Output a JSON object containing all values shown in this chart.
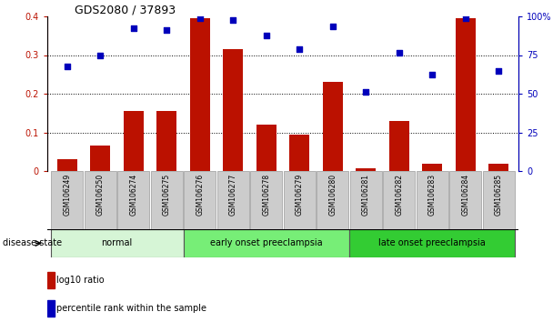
{
  "title": "GDS2080 / 37893",
  "samples": [
    "GSM106249",
    "GSM106250",
    "GSM106274",
    "GSM106275",
    "GSM106276",
    "GSM106277",
    "GSM106278",
    "GSM106279",
    "GSM106280",
    "GSM106281",
    "GSM106282",
    "GSM106283",
    "GSM106284",
    "GSM106285"
  ],
  "log10_ratio": [
    0.03,
    0.065,
    0.155,
    0.155,
    0.395,
    0.315,
    0.12,
    0.095,
    0.23,
    0.008,
    0.13,
    0.02,
    0.395,
    0.02
  ],
  "percentile_rank_pct": [
    67.5,
    75,
    92.5,
    91.25,
    98.75,
    97.5,
    87.5,
    78.75,
    93.75,
    51.25,
    76.25,
    62.5,
    98.75,
    65
  ],
  "bar_color": "#bb1100",
  "dot_color": "#0000bb",
  "ylim_left": [
    0,
    0.4
  ],
  "ylim_right": [
    0,
    100
  ],
  "yticks_left": [
    0.0,
    0.1,
    0.2,
    0.3,
    0.4
  ],
  "yticks_right": [
    0,
    25,
    50,
    75,
    100
  ],
  "groups": [
    {
      "label": "normal",
      "start": 0,
      "end": 3,
      "color": "#d6f5d6"
    },
    {
      "label": "early onset preeclampsia",
      "start": 4,
      "end": 8,
      "color": "#77ee77"
    },
    {
      "label": "late onset preeclampsia",
      "start": 9,
      "end": 13,
      "color": "#33cc33"
    }
  ],
  "disease_state_label": "disease state",
  "legend_bar_label": "log10 ratio",
  "legend_dot_label": "percentile rank within the sample",
  "tick_area_color": "#cccccc"
}
